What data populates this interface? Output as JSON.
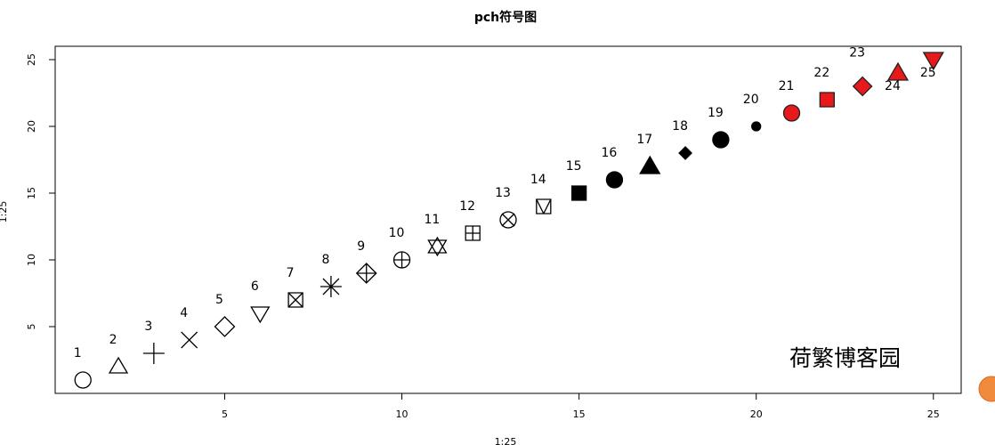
{
  "chart_data": {
    "type": "scatter",
    "title": "pch符号图",
    "xlabel": "1:25",
    "ylabel": "1:25",
    "x": [
      1,
      2,
      3,
      4,
      5,
      6,
      7,
      8,
      9,
      10,
      11,
      12,
      13,
      14,
      15,
      16,
      17,
      18,
      19,
      20,
      21,
      22,
      23,
      24,
      25
    ],
    "series": [
      {
        "color": "#000000",
        "bg": "#e8191a",
        "values": [
          1,
          2,
          3,
          4,
          5,
          6,
          7,
          8,
          9,
          10,
          11,
          12,
          13,
          14,
          15,
          16,
          17,
          18,
          19,
          20,
          21,
          22,
          23,
          24,
          25
        ],
        "point_labels": [
          "1",
          "2",
          "3",
          "4",
          "5",
          "6",
          "7",
          "8",
          "9",
          "10",
          "11",
          "12",
          "13",
          "14",
          "15",
          "16",
          "17",
          "18",
          "19",
          "20",
          "21",
          "22",
          "23",
          "24",
          "25"
        ]
      }
    ],
    "xlim": [
      0.04,
      25.96
    ],
    "ylim": [
      0.04,
      25.96
    ],
    "xticks": [
      5,
      10,
      15,
      20,
      25
    ],
    "yticks": [
      5,
      10,
      15,
      20,
      25
    ],
    "annotation": "荷繁博客园"
  }
}
